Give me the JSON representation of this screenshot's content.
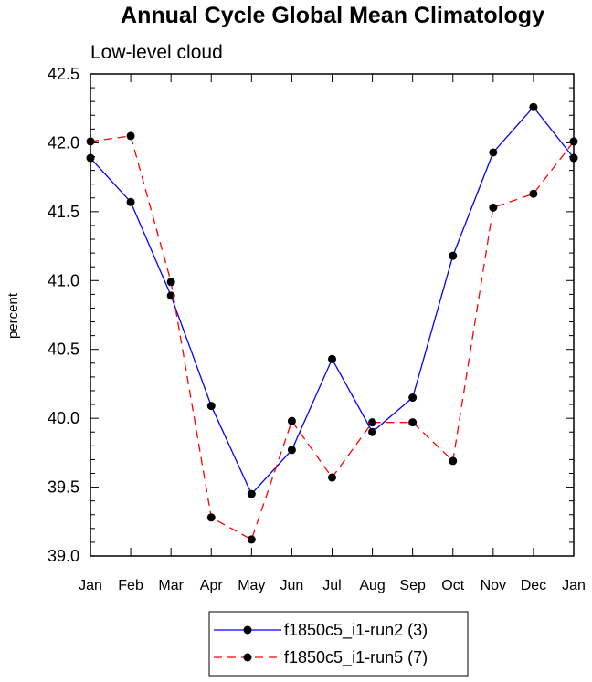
{
  "chart_data": {
    "type": "line",
    "title": "Annual Cycle Global Mean Climatology",
    "subtitle": "Low-level cloud",
    "xlabel": "",
    "ylabel": "percent",
    "categories": [
      "Jan",
      "Feb",
      "Mar",
      "Apr",
      "May",
      "Jun",
      "Jul",
      "Aug",
      "Sep",
      "Oct",
      "Nov",
      "Dec",
      "Jan"
    ],
    "ylim": [
      39.0,
      42.5
    ],
    "yticks": [
      "39.0",
      "39.5",
      "40.0",
      "40.5",
      "41.0",
      "41.5",
      "42.0",
      "42.5"
    ],
    "yminor_step": 0.1,
    "grid": false,
    "legend_position": "bottom-center",
    "series": [
      {
        "name": "f1850c5_i1-run2 (3)",
        "color": "#0000ff",
        "dash": "solid",
        "marker": "circle",
        "values": [
          41.89,
          41.57,
          40.89,
          40.09,
          39.45,
          39.77,
          40.43,
          39.9,
          40.15,
          41.18,
          41.93,
          42.26,
          41.89
        ]
      },
      {
        "name": "f1850c5_i1-run5 (7)",
        "color": "#ff0000",
        "dash": "dashed",
        "marker": "circle",
        "values": [
          42.01,
          42.05,
          40.99,
          39.28,
          39.12,
          39.98,
          39.57,
          39.97,
          39.97,
          39.69,
          41.53,
          41.63,
          42.01
        ]
      }
    ]
  }
}
